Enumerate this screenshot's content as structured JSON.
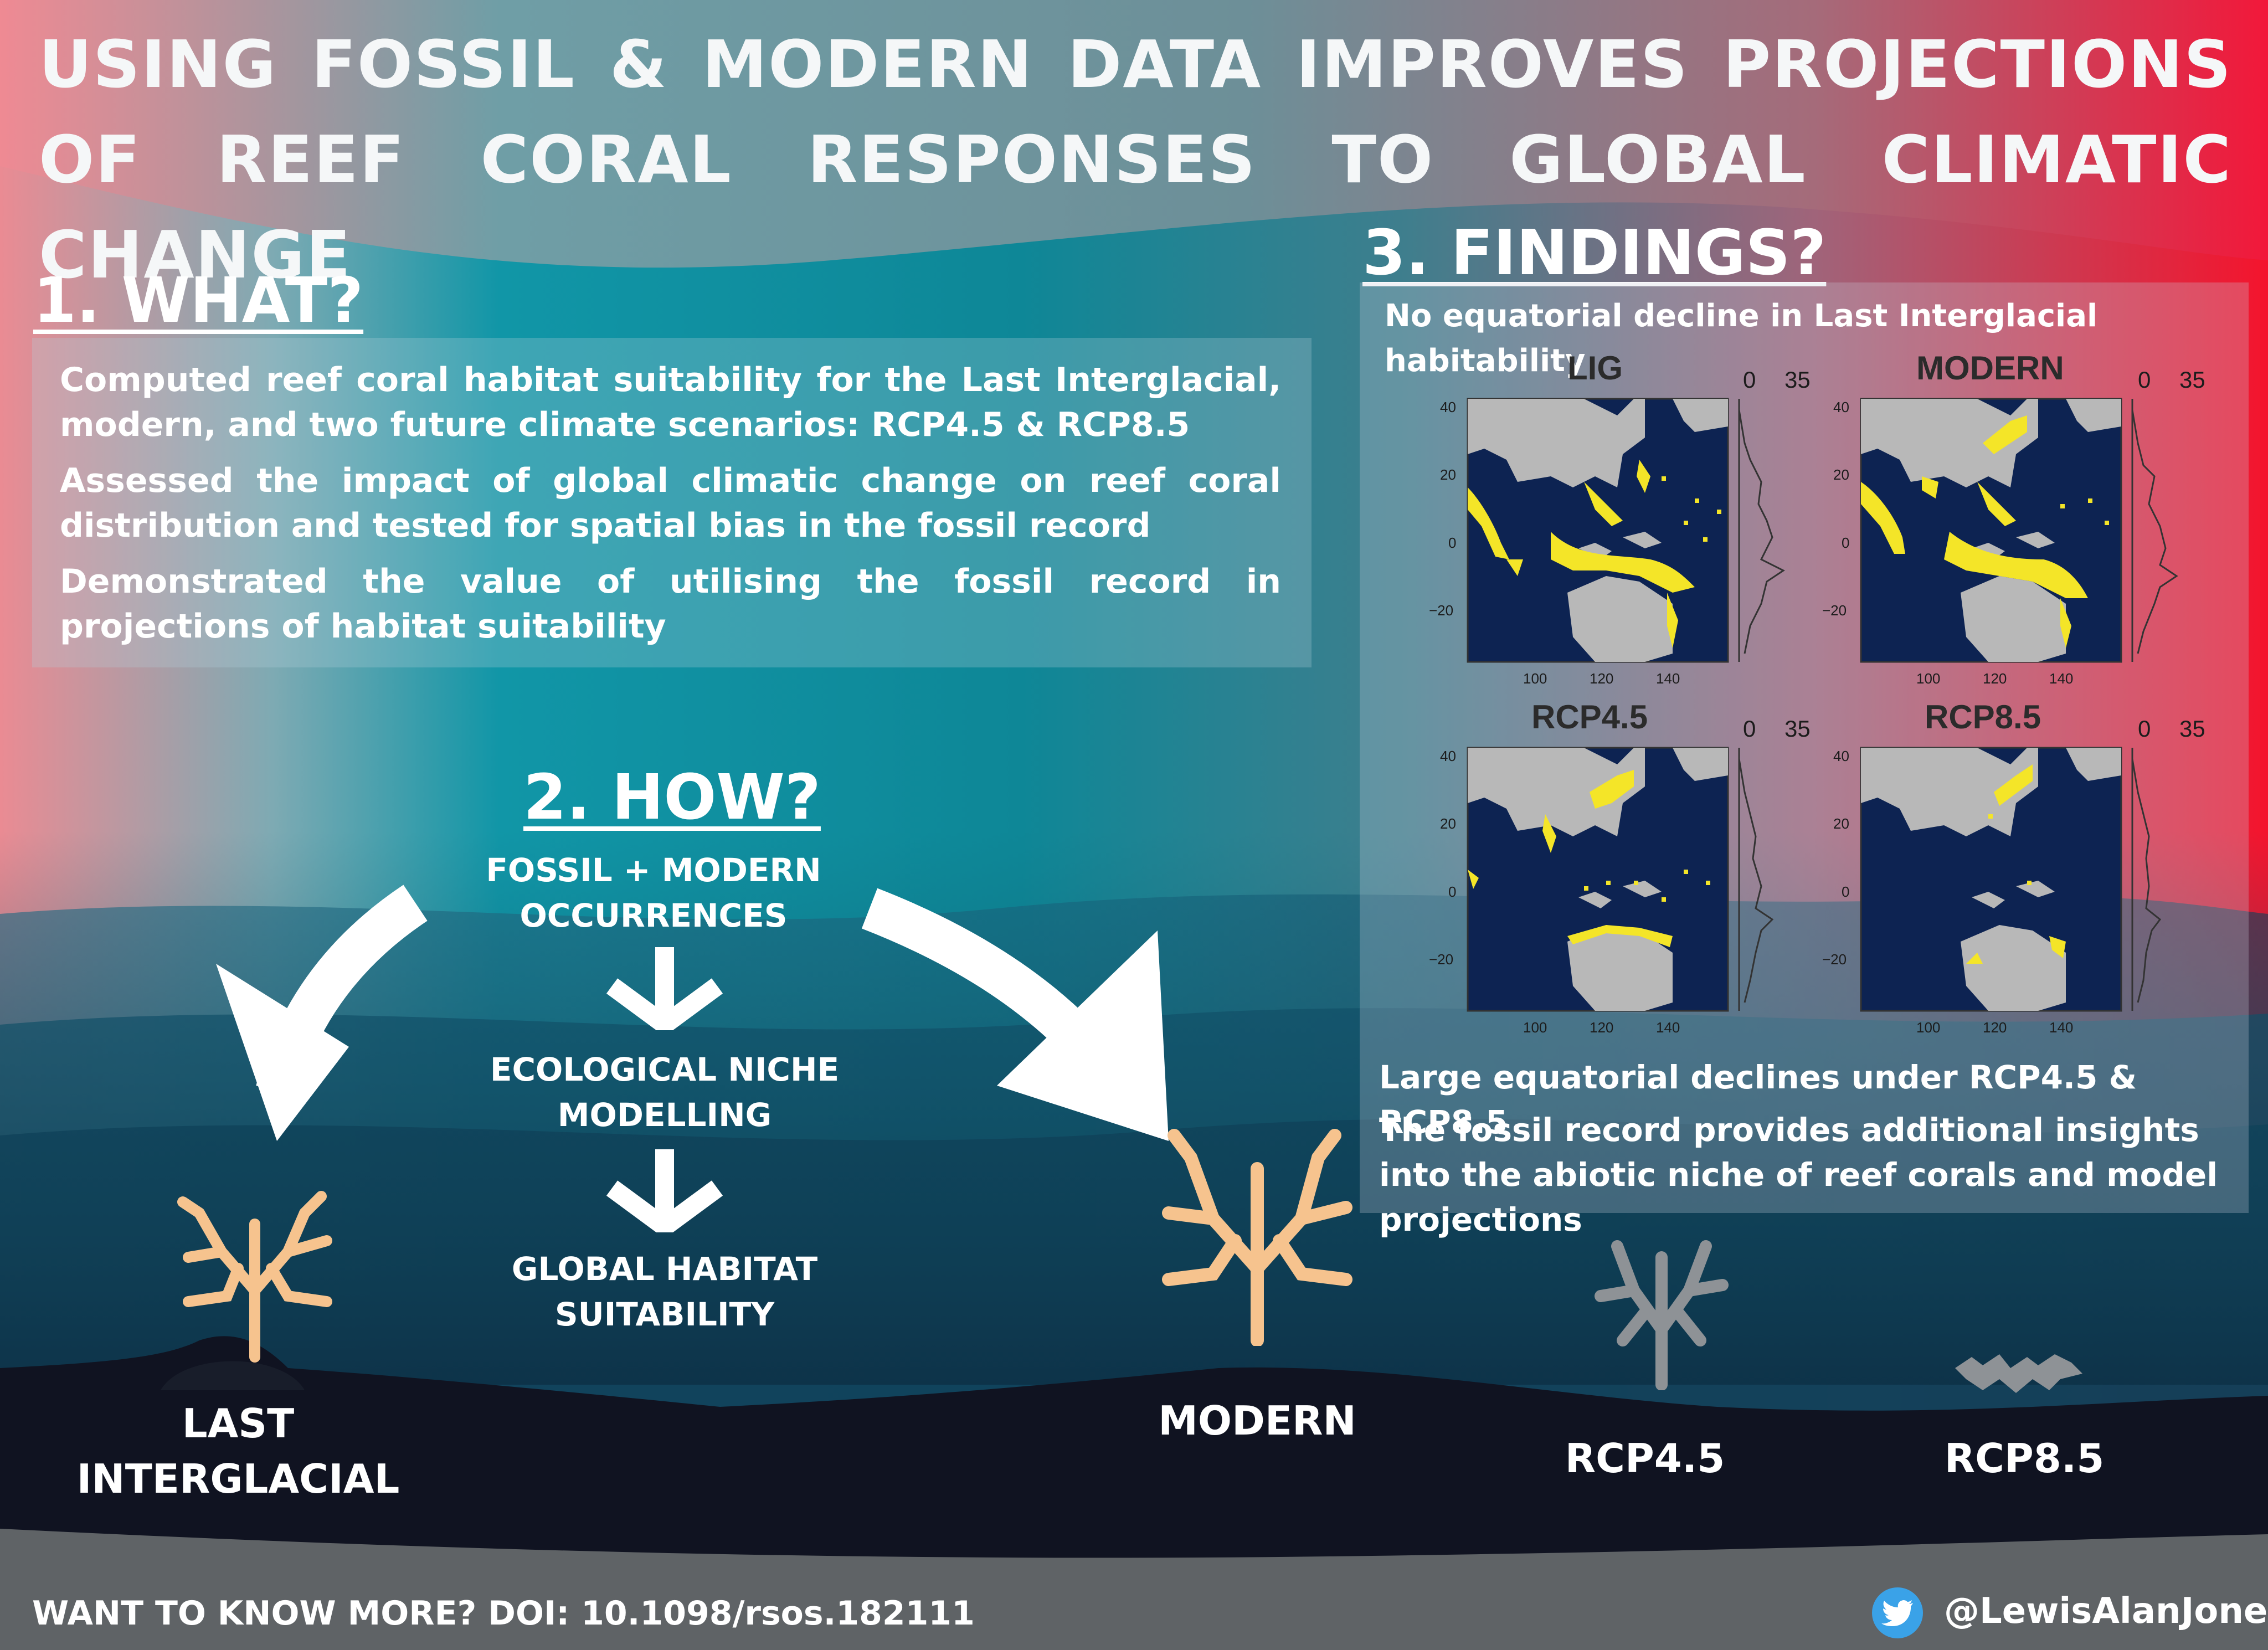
{
  "title": "USING FOSSIL & MODERN DATA IMPROVES PROJECTIONS OF REEF CORAL RESPONSES TO GLOBAL CLIMATIC CHANGE",
  "what": {
    "heading": "1. WHAT?",
    "points": [
      "Computed reef coral habitat suitability for the Last Interglacial, modern, and two future climate scenarios: RCP4.5 & RCP8.5",
      "Assessed the impact of global climatic change on reef coral distribution and tested for spatial bias in the fossil record",
      "Demonstrated the value of utilising the fossil record in projections of habitat suitability"
    ]
  },
  "how": {
    "heading": "2. HOW?",
    "steps": [
      "FOSSIL + MODERN OCCURRENCES",
      "ECOLOGICAL NICHE MODELLING",
      "GLOBAL HABITAT SUITABILITY"
    ]
  },
  "findings": {
    "heading": "3. FINDINGS?",
    "subtitle": "No equatorial decline in Last Interglacial habitability",
    "maps": [
      {
        "label": "LIG",
        "scale_min": "0",
        "scale_max": "35"
      },
      {
        "label": "MODERN",
        "scale_min": "0",
        "scale_max": "35"
      },
      {
        "label": "RCP4.5",
        "scale_min": "0",
        "scale_max": "35"
      },
      {
        "label": "RCP8.5",
        "scale_min": "0",
        "scale_max": "35"
      }
    ],
    "y_ticks": [
      "40",
      "20",
      "0",
      "−20"
    ],
    "x_ticks": [
      "100",
      "120",
      "140"
    ],
    "point1": "Large equatorial declines under RCP4.5 & RCP8.5",
    "point2": "The fossil record provides additional insights into the abiotic niche of reef corals and model projections"
  },
  "eras": {
    "lig": "LAST INTERGLACIAL",
    "modern": "MODERN",
    "rcp45": "RCP4.5",
    "rcp85": "RCP8.5"
  },
  "footer": {
    "doi": "WANT TO KNOW MORE? DOI: 10.1098/rsos.182111",
    "handle": "@LewisAlanJones"
  },
  "colors": {
    "suitable": "#f4e528",
    "ocean_map": "#0d2352",
    "land_map": "#b8b8b8",
    "coral_healthy": "#f6c38e",
    "coral_bleached": "#8e9296"
  }
}
